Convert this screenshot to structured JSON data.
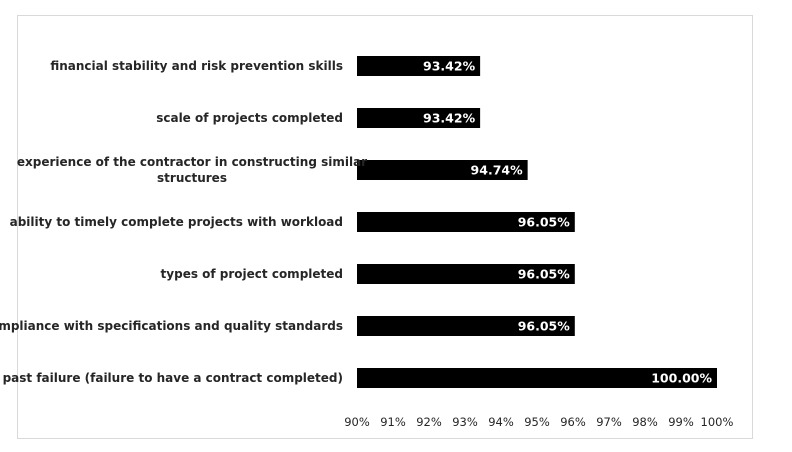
{
  "chart_data": {
    "type": "bar",
    "orientation": "horizontal",
    "categories": [
      "financial stability and risk prevention skills",
      "scale of projects completed",
      "experience of the contractor in constructing similar structures",
      "ability to timely complete projects with workload",
      "types of project completed",
      "compliance with specifications and quality standards",
      "past failure (failure to have a contract completed)"
    ],
    "category_lines": [
      [
        "financial stability and risk prevention skills"
      ],
      [
        "scale of projects completed"
      ],
      [
        "experience of the contractor in constructing similar",
        "structures"
      ],
      [
        "ability to timely complete projects with workload"
      ],
      [
        "types of project completed"
      ],
      [
        "compliance with specifications and quality standards"
      ],
      [
        "past failure (failure to have a contract completed)"
      ]
    ],
    "values": [
      93.42,
      93.42,
      94.74,
      96.05,
      96.05,
      96.05,
      100.0
    ],
    "data_labels": [
      "93.42%",
      "93.42%",
      "94.74%",
      "96.05%",
      "96.05%",
      "96.05%",
      "100.00%"
    ],
    "xlim": [
      90,
      100
    ],
    "x_ticks": [
      "90%",
      "91%",
      "92%",
      "93%",
      "94%",
      "95%",
      "96%",
      "97%",
      "98%",
      "99%",
      "100%"
    ],
    "title": "",
    "xlabel": "",
    "ylabel": "",
    "grid": false,
    "legend": "none",
    "bar_color": "#000000",
    "label_color": "#ffffff"
  }
}
